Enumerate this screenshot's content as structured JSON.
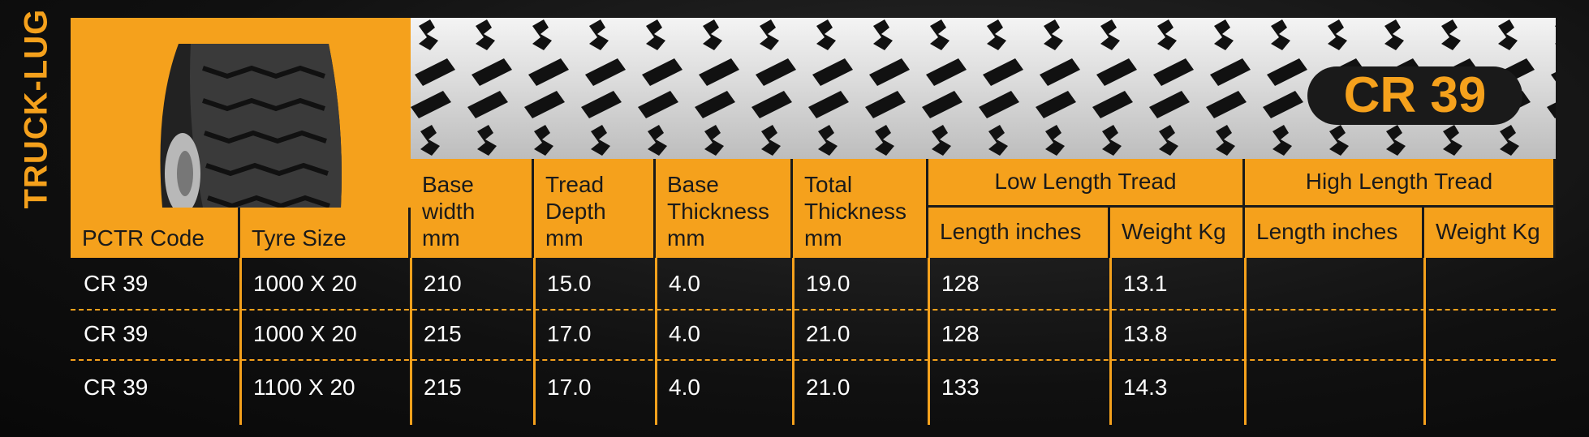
{
  "side_label": "TRUCK-LUG",
  "badge": "CR 39",
  "table": {
    "columns": [
      [
        "PCTR Code"
      ],
      [
        "Tyre Size"
      ],
      [
        "Base",
        "width",
        "mm"
      ],
      [
        "Tread",
        "Depth",
        "mm"
      ],
      [
        "Base",
        "Thickness",
        "mm"
      ],
      [
        "Total",
        "Thickness",
        "mm"
      ]
    ],
    "groups": [
      {
        "label": "Low Length Tread",
        "columns": [
          "Length inches",
          "Weight Kg"
        ]
      },
      {
        "label": "High Length Tread",
        "columns": [
          "Length inches",
          "Weight Kg"
        ]
      }
    ],
    "rows": [
      [
        "CR 39",
        "1000 X 20",
        "210",
        "15.0",
        "4.0",
        "19.0",
        "128",
        "13.1"
      ],
      [
        "CR 39",
        "1000 X 20",
        "215",
        "17.0",
        "4.0",
        "21.0",
        "128",
        "13.8"
      ],
      [
        "CR 39",
        "1100 X 20",
        "215",
        "17.0",
        "4.0",
        "21.0",
        "133",
        "14.3"
      ]
    ]
  }
}
